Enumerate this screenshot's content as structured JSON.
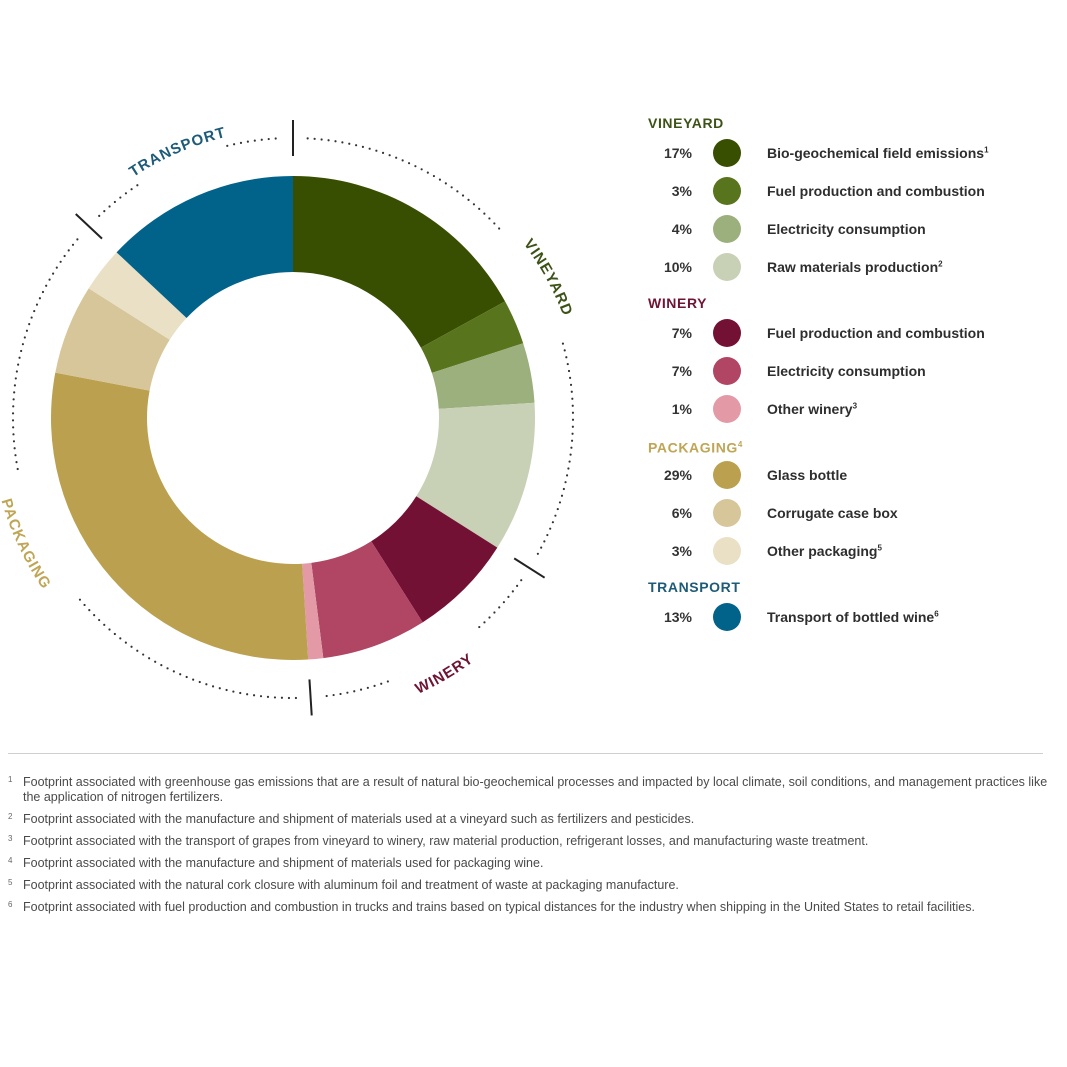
{
  "chart_data": {
    "type": "pie",
    "variant": "donut",
    "start": "12 o'clock, clockwise",
    "slices": [
      {
        "group": "vineyard",
        "label": "Bio-geochemical field emissions",
        "note": "1",
        "percent": 17,
        "value_label": "17%",
        "color": "#384f02"
      },
      {
        "group": "vineyard",
        "label": "Fuel production and combustion",
        "note": "",
        "percent": 3,
        "value_label": "3%",
        "color": "#58741c"
      },
      {
        "group": "vineyard",
        "label": "Electricity consumption",
        "note": "",
        "percent": 4,
        "value_label": "4%",
        "color": "#9bb07d"
      },
      {
        "group": "vineyard",
        "label": "Raw materials production",
        "note": "2",
        "percent": 10,
        "value_label": "10%",
        "color": "#c8d1b6"
      },
      {
        "group": "winery",
        "label": "Fuel production and combustion",
        "note": "",
        "percent": 7,
        "value_label": "7%",
        "color": "#731135"
      },
      {
        "group": "winery",
        "label": "Electricity consumption",
        "note": "",
        "percent": 7,
        "value_label": "7%",
        "color": "#b04564"
      },
      {
        "group": "winery",
        "label": "Other winery",
        "note": "3",
        "percent": 1,
        "value_label": "1%",
        "color": "#e39aa6"
      },
      {
        "group": "packaging",
        "label": "Glass bottle",
        "note": "",
        "percent": 29,
        "value_label": "29%",
        "color": "#bba14f"
      },
      {
        "group": "packaging",
        "label": "Corrugate case box",
        "note": "",
        "percent": 6,
        "value_label": "6%",
        "color": "#d7c699"
      },
      {
        "group": "packaging",
        "label": "Other packaging",
        "note": "5",
        "percent": 3,
        "value_label": "3%",
        "color": "#e9e0c5"
      },
      {
        "group": "transport",
        "label": "Transport of bottled wine",
        "note": "6",
        "percent": 13,
        "value_label": "13%",
        "color": "#01628a"
      }
    ],
    "groups": [
      {
        "key": "vineyard",
        "label": "VINEYARD",
        "note": "",
        "color": "#3d5217",
        "text_color": "#3d5217"
      },
      {
        "key": "winery",
        "label": "WINERY",
        "note": "",
        "color": "#6e1535",
        "text_color": "#6e1535"
      },
      {
        "key": "packaging",
        "label": "PACKAGING",
        "note": "4",
        "color": "#bfa555",
        "text_color": "#bfa555"
      },
      {
        "key": "transport",
        "label": "TRANSPORT",
        "note": "",
        "color": "#1d5b78",
        "text_color": "#1d5b78"
      }
    ]
  },
  "footnotes": [
    {
      "num": "1",
      "text": "Footprint associated with greenhouse gas emissions that are a result of natural bio-geochemical processes and impacted by local climate, soil conditions, and management practices like the application of nitrogen fertilizers."
    },
    {
      "num": "2",
      "text": "Footprint associated with the manufacture and shipment of materials used at a vineyard such as fertilizers and pesticides."
    },
    {
      "num": "3",
      "text": "Footprint associated with the transport of grapes from vineyard to winery, raw material production, refrigerant losses, and manufacturing waste treatment."
    },
    {
      "num": "4",
      "text": "Footprint associated with the manufacture and shipment of materials used for packaging wine."
    },
    {
      "num": "5",
      "text": "Footprint associated with the natural cork closure with aluminum foil and treatment of waste at packaging manufacture."
    },
    {
      "num": "6",
      "text": "Footprint associated with fuel production and combustion in trucks and trains based on typical distances for the industry when shipping in the United States to retail facilities."
    }
  ]
}
